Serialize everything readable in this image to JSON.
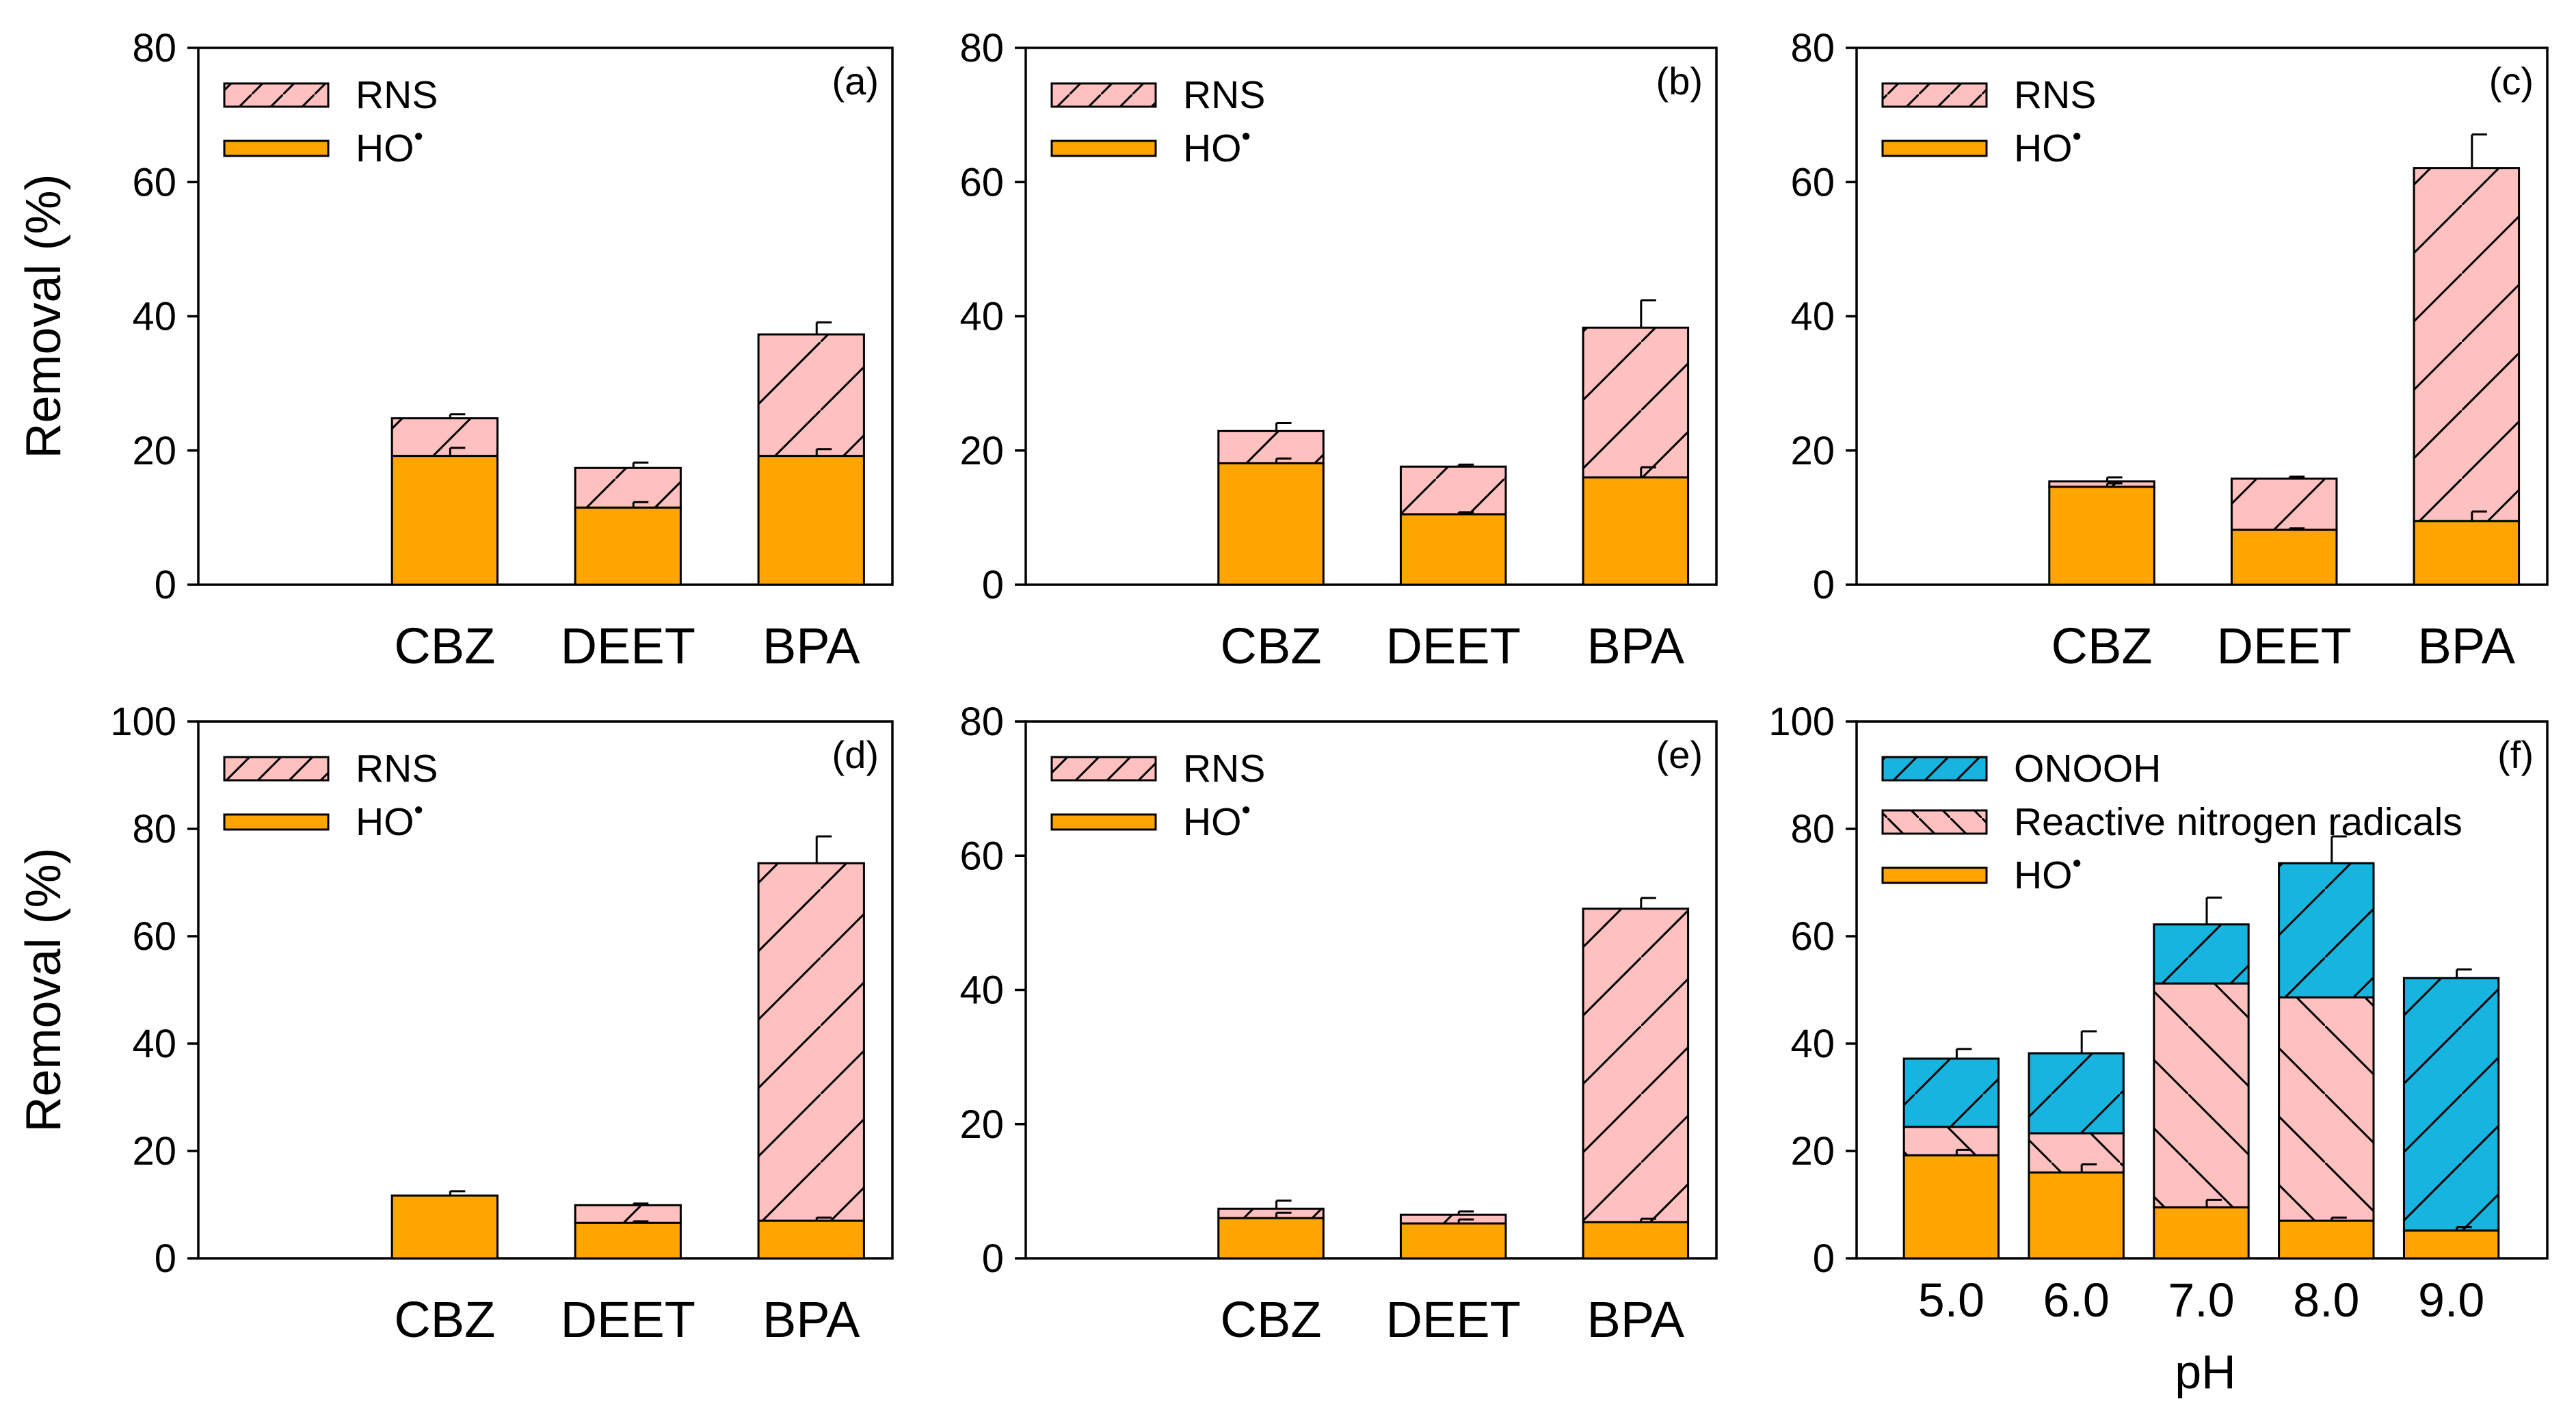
{
  "colors": {
    "ho": "#FFA500",
    "rns": "#FFC0C0",
    "onooh": "#17B4E0",
    "edge": "#000000"
  },
  "chart_data": [
    {
      "type": "bar",
      "stacked": true,
      "panel_label": "(a)",
      "categories": [
        "CBZ",
        "DEET",
        "BPA"
      ],
      "ylabel": "Removal (%)",
      "xlabel": "",
      "ylim": [
        0,
        80
      ],
      "yticks": [
        "0",
        "20",
        "40",
        "60",
        "80"
      ],
      "legend": {
        "items": [
          {
            "label": "RNS",
            "sup": ""
          },
          {
            "label": "HO",
            "sup": "•"
          }
        ]
      },
      "series": [
        {
          "key": "ho",
          "name": "HO•",
          "values": [
            19.2,
            11.5,
            19.2
          ],
          "errors": [
            1.2,
            0.8,
            1.0
          ]
        },
        {
          "key": "rns",
          "name": "RNS",
          "values": [
            5.6,
            5.9,
            18.1
          ],
          "errors": [
            0.6,
            0.8,
            1.8
          ]
        }
      ]
    },
    {
      "type": "bar",
      "stacked": true,
      "panel_label": "(b)",
      "categories": [
        "CBZ",
        "DEET",
        "BPA"
      ],
      "ylabel": "",
      "xlabel": "",
      "ylim": [
        0,
        80
      ],
      "yticks": [
        "0",
        "20",
        "40",
        "60",
        "80"
      ],
      "legend": {
        "items": [
          {
            "label": "RNS",
            "sup": ""
          },
          {
            "label": "HO",
            "sup": "•"
          }
        ]
      },
      "series": [
        {
          "key": "ho",
          "name": "HO•",
          "values": [
            18.1,
            10.5,
            16.0
          ],
          "errors": [
            0.7,
            0.3,
            1.5
          ]
        },
        {
          "key": "rns",
          "name": "RNS",
          "values": [
            4.8,
            7.1,
            22.3
          ],
          "errors": [
            1.2,
            0.3,
            4.1
          ]
        }
      ]
    },
    {
      "type": "bar",
      "stacked": true,
      "panel_label": "(c)",
      "categories": [
        "CBZ",
        "DEET",
        "BPA"
      ],
      "ylabel": "",
      "xlabel": "",
      "ylim": [
        0,
        80
      ],
      "yticks": [
        "0",
        "20",
        "40",
        "60",
        "80"
      ],
      "legend": {
        "items": [
          {
            "label": "RNS",
            "sup": ""
          },
          {
            "label": "HO",
            "sup": "•"
          }
        ]
      },
      "series": [
        {
          "key": "ho",
          "name": "HO•",
          "values": [
            14.6,
            8.2,
            9.5
          ],
          "errors": [
            0.5,
            0.2,
            1.4
          ]
        },
        {
          "key": "rns",
          "name": "RNS",
          "values": [
            0.8,
            7.6,
            52.6
          ],
          "errors": [
            0.6,
            0.3,
            5.0
          ]
        }
      ]
    },
    {
      "type": "bar",
      "stacked": true,
      "panel_label": "(d)",
      "categories": [
        "CBZ",
        "DEET",
        "BPA"
      ],
      "ylabel": "Removal (%)",
      "xlabel": "",
      "ylim": [
        0,
        100
      ],
      "yticks": [
        "0",
        "20",
        "40",
        "60",
        "80",
        "100"
      ],
      "legend": {
        "items": [
          {
            "label": "RNS",
            "sup": ""
          },
          {
            "label": "HO",
            "sup": "•"
          }
        ]
      },
      "series": [
        {
          "key": "ho",
          "name": "HO•",
          "values": [
            11.7,
            6.6,
            7.0
          ],
          "errors": [
            0.8,
            0.3,
            0.6
          ]
        },
        {
          "key": "rns",
          "name": "RNS",
          "values": [
            0.0,
            3.3,
            66.6
          ],
          "errors": [
            0.0,
            0.3,
            5.0
          ]
        }
      ]
    },
    {
      "type": "bar",
      "stacked": true,
      "panel_label": "(e)",
      "categories": [
        "CBZ",
        "DEET",
        "BPA"
      ],
      "ylabel": "",
      "xlabel": "",
      "ylim": [
        0,
        80
      ],
      "yticks": [
        "0",
        "20",
        "40",
        "60",
        "80"
      ],
      "legend": {
        "items": [
          {
            "label": "RNS",
            "sup": ""
          },
          {
            "label": "HO",
            "sup": "•"
          }
        ]
      },
      "series": [
        {
          "key": "ho",
          "name": "HO•",
          "values": [
            6.0,
            5.2,
            5.4
          ],
          "errors": [
            0.8,
            0.6,
            0.5
          ]
        },
        {
          "key": "rns",
          "name": "RNS",
          "values": [
            1.4,
            1.3,
            46.7
          ],
          "errors": [
            1.2,
            0.5,
            1.6
          ]
        }
      ]
    },
    {
      "type": "bar",
      "stacked": true,
      "panel_label": "(f)",
      "categories": [
        "5.0",
        "6.0",
        "7.0",
        "8.0",
        "9.0"
      ],
      "ylabel": "",
      "xlabel": "pH",
      "ylim": [
        0,
        100
      ],
      "yticks": [
        "0",
        "20",
        "40",
        "60",
        "80",
        "100"
      ],
      "legend": {
        "items": [
          {
            "label": "ONOOH",
            "sup": ""
          },
          {
            "label": "Reactive nitrogen radicals",
            "sup": ""
          },
          {
            "label": "HO",
            "sup": "•"
          }
        ]
      },
      "series": [
        {
          "key": "ho",
          "name": "HO•",
          "values": [
            19.2,
            16.0,
            9.5,
            7.0,
            5.2
          ],
          "errors": [
            1.0,
            1.5,
            1.4,
            0.6,
            0.6
          ]
        },
        {
          "key": "rns",
          "name": "Reactive nitrogen radicals",
          "values": [
            5.3,
            7.3,
            41.7,
            41.6,
            0.0
          ],
          "errors": [
            0.0,
            0.0,
            0.0,
            0.0,
            0.0
          ]
        },
        {
          "key": "onooh",
          "name": "ONOOH",
          "values": [
            12.7,
            14.9,
            11.0,
            25.0,
            47.0
          ],
          "errors": [
            1.8,
            4.1,
            5.0,
            5.0,
            1.6
          ]
        }
      ]
    }
  ]
}
